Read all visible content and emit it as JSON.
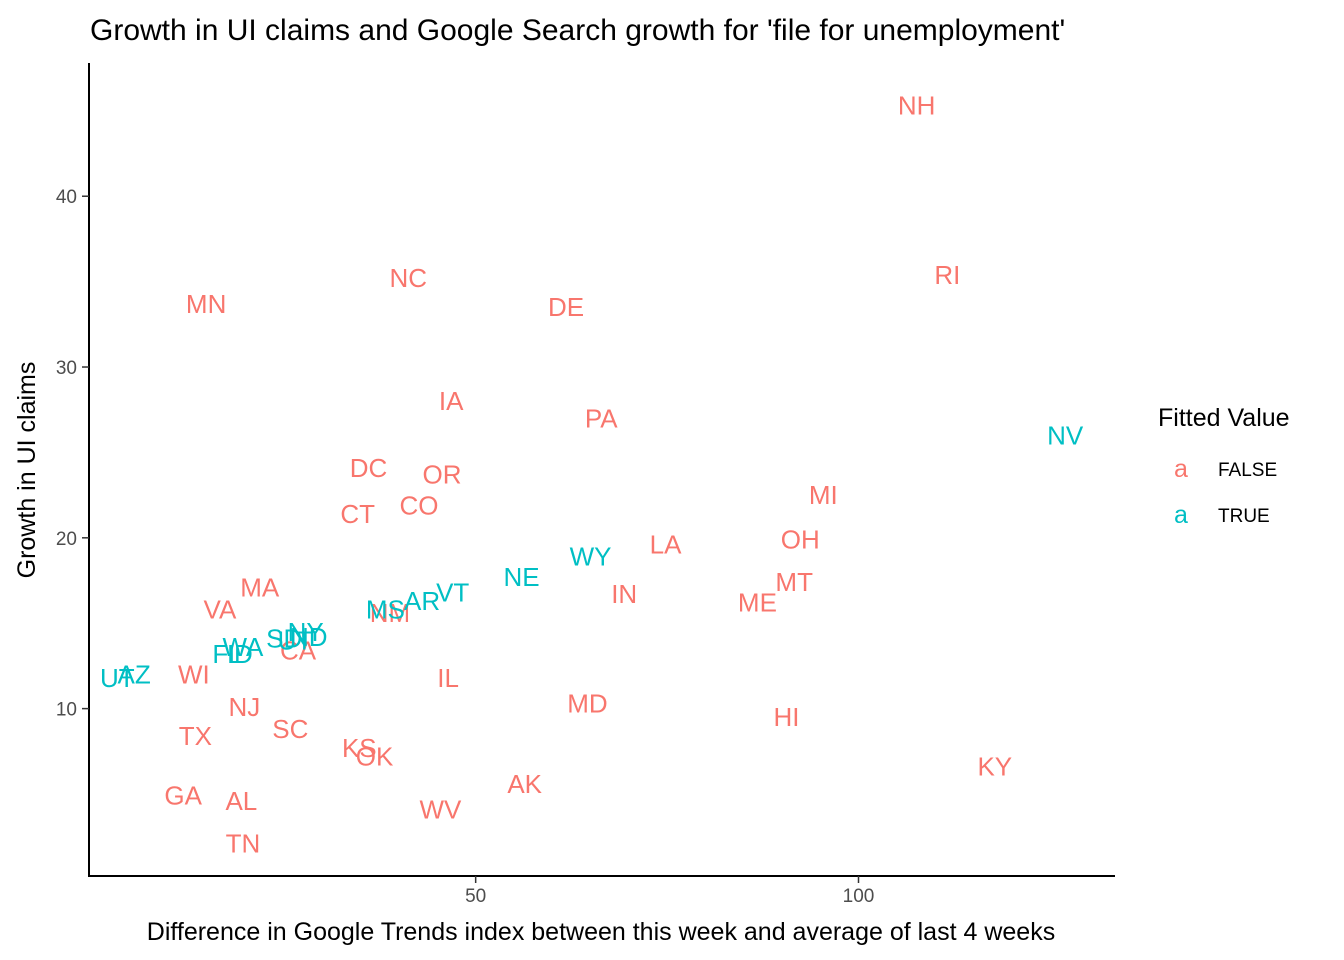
{
  "chart_data": {
    "type": "scatter",
    "title": "Growth in UI claims and Google Search growth for 'file for unemployment'",
    "xlabel": "Difference in Google Trends index between this week and average of last 4 weeks",
    "ylabel": "Growth in UI claims",
    "xlim": [
      -0.5,
      133.5
    ],
    "ylim": [
      0.2,
      47.8
    ],
    "x_ticks": [
      50,
      100
    ],
    "y_ticks": [
      10,
      20,
      30,
      40
    ],
    "grid": false,
    "legend": {
      "title": "Fitted Value",
      "position": "right",
      "key_glyph": "a",
      "entries": [
        {
          "label": "FALSE",
          "color": "#F8766D"
        },
        {
          "label": "TRUE",
          "color": "#00BFC4"
        }
      ]
    },
    "series": [
      {
        "name": "FALSE",
        "color": "#F8766D",
        "points": [
          {
            "label": "NH",
            "x": 107.6,
            "y": 45.3
          },
          {
            "label": "RI",
            "x": 111.6,
            "y": 35.4
          },
          {
            "label": "NC",
            "x": 41.2,
            "y": 35.2
          },
          {
            "label": "MN",
            "x": 14.8,
            "y": 33.7
          },
          {
            "label": "DE",
            "x": 61.8,
            "y": 33.5
          },
          {
            "label": "IA",
            "x": 46.8,
            "y": 28.0
          },
          {
            "label": "PA",
            "x": 66.4,
            "y": 27.0
          },
          {
            "label": "DC",
            "x": 36.0,
            "y": 24.1
          },
          {
            "label": "OR",
            "x": 45.6,
            "y": 23.7
          },
          {
            "label": "MI",
            "x": 95.4,
            "y": 22.5
          },
          {
            "label": "CO",
            "x": 42.6,
            "y": 21.9
          },
          {
            "label": "CT",
            "x": 34.6,
            "y": 21.4
          },
          {
            "label": "OH",
            "x": 92.4,
            "y": 19.9
          },
          {
            "label": "LA",
            "x": 74.8,
            "y": 19.6
          },
          {
            "label": "MT",
            "x": 91.6,
            "y": 17.4
          },
          {
            "label": "MA",
            "x": 21.8,
            "y": 17.1
          },
          {
            "label": "IN",
            "x": 69.4,
            "y": 16.7
          },
          {
            "label": "ME",
            "x": 86.8,
            "y": 16.2
          },
          {
            "label": "VA",
            "x": 16.6,
            "y": 15.8
          },
          {
            "label": "NM",
            "x": 38.8,
            "y": 15.6
          },
          {
            "label": "CA",
            "x": 26.8,
            "y": 13.4
          },
          {
            "label": "WI",
            "x": 13.2,
            "y": 12.0
          },
          {
            "label": "IL",
            "x": 46.4,
            "y": 11.8
          },
          {
            "label": "MD",
            "x": 64.6,
            "y": 10.3
          },
          {
            "label": "NJ",
            "x": 19.8,
            "y": 10.1
          },
          {
            "label": "HI",
            "x": 90.6,
            "y": 9.5
          },
          {
            "label": "SC",
            "x": 25.8,
            "y": 8.8
          },
          {
            "label": "TX",
            "x": 13.4,
            "y": 8.4
          },
          {
            "label": "KS",
            "x": 34.8,
            "y": 7.7
          },
          {
            "label": "OK",
            "x": 36.8,
            "y": 7.2
          },
          {
            "label": "KY",
            "x": 117.8,
            "y": 6.6
          },
          {
            "label": "AK",
            "x": 56.4,
            "y": 5.6
          },
          {
            "label": "GA",
            "x": 11.8,
            "y": 4.9
          },
          {
            "label": "AL",
            "x": 19.4,
            "y": 4.6
          },
          {
            "label": "WV",
            "x": 45.4,
            "y": 4.1
          },
          {
            "label": "TN",
            "x": 19.6,
            "y": 2.1
          }
        ]
      },
      {
        "name": "TRUE",
        "color": "#00BFC4",
        "points": [
          {
            "label": "NV",
            "x": 127.0,
            "y": 26.0
          },
          {
            "label": "WY",
            "x": 65.0,
            "y": 18.9
          },
          {
            "label": "NE",
            "x": 56.0,
            "y": 17.7
          },
          {
            "label": "VT",
            "x": 47.0,
            "y": 16.8
          },
          {
            "label": "AR",
            "x": 43.0,
            "y": 16.3
          },
          {
            "label": "MS",
            "x": 38.2,
            "y": 15.8
          },
          {
            "label": "NY",
            "x": 27.8,
            "y": 14.5
          },
          {
            "label": "SD",
            "x": 25.0,
            "y": 14.1
          },
          {
            "label": "UT",
            "x": 26.4,
            "y": 14.0
          },
          {
            "label": "ND",
            "x": 28.2,
            "y": 14.2
          },
          {
            "label": "WA",
            "x": 19.6,
            "y": 13.6
          },
          {
            "label": "FL",
            "x": 17.6,
            "y": 13.2
          },
          {
            "label": "ID",
            "x": 19.2,
            "y": 13.2
          },
          {
            "label": "AZ",
            "x": 5.4,
            "y": 12.0
          },
          {
            "label": "UT2",
            "x": 3.2,
            "y": 11.8
          }
        ]
      }
    ]
  }
}
